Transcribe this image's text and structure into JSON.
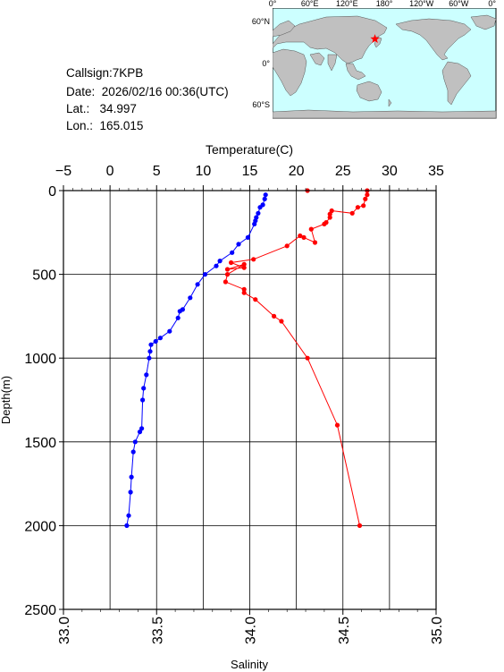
{
  "header": {
    "callsign_label": "Callsign:",
    "callsign": "7KPB",
    "date_label": "Date:",
    "date": "2026/02/16 00:36(UTC)",
    "lat_label": "Lat.:",
    "lat": "34.997",
    "lon_label": "Lon.:",
    "lon": "165.015"
  },
  "map": {
    "top_ticks": [
      "0°",
      "60°E",
      "120°E",
      "180°",
      "120°W",
      "60°W",
      "0°"
    ],
    "left_ticks": [
      "60°N",
      "0°",
      "60°S"
    ],
    "lon_range": [
      0,
      360
    ],
    "lat_range": [
      -80,
      80
    ],
    "marker": {
      "lon": 165.015,
      "lat": 34.997,
      "symbol": "star-icon",
      "color": "#ff0000"
    },
    "ocean_color": "#ccffff",
    "land_color": "#c0c0c0"
  },
  "chart_data": {
    "type": "line",
    "top_axis": {
      "label": "Temperature(C)",
      "range": [
        -5,
        35
      ],
      "ticks": [
        -5,
        0,
        5,
        10,
        15,
        20,
        25,
        30,
        35
      ],
      "tick_labels": [
        "−5",
        "0",
        "5",
        "10",
        "15",
        "20",
        "25",
        "30",
        "35"
      ]
    },
    "bottom_axis": {
      "label": "Salinity",
      "range": [
        33.0,
        35.0
      ],
      "ticks": [
        33.0,
        33.5,
        34.0,
        34.5,
        35.0
      ],
      "tick_labels": [
        "33.0",
        "33.5",
        "34.0",
        "34.5",
        "35.0"
      ]
    },
    "y_axis": {
      "label": "Depth(m)",
      "range": [
        0,
        2500
      ],
      "inverted": true,
      "ticks": [
        0,
        500,
        1000,
        1500,
        2000,
        2500
      ],
      "tick_labels": [
        "0",
        "500",
        "1000",
        "1500",
        "2000",
        "2500"
      ]
    },
    "grid": true,
    "series": [
      {
        "quantity": "temperature",
        "axis": "top",
        "color": "#0000ff",
        "points": [
          [
            16.7,
            25
          ],
          [
            16.6,
            50
          ],
          [
            16.4,
            85
          ],
          [
            16.1,
            100
          ],
          [
            15.9,
            135
          ],
          [
            15.7,
            160
          ],
          [
            15.6,
            180
          ],
          [
            15.5,
            200
          ],
          [
            14.8,
            280
          ],
          [
            13.8,
            320
          ],
          [
            13.1,
            370
          ],
          [
            11.8,
            420
          ],
          [
            11.4,
            450
          ],
          [
            10.2,
            500
          ],
          [
            9.4,
            560
          ],
          [
            8.6,
            640
          ],
          [
            7.8,
            710
          ],
          [
            7.5,
            720
          ],
          [
            7.3,
            760
          ],
          [
            6.4,
            840
          ],
          [
            5.4,
            880
          ],
          [
            4.9,
            900
          ],
          [
            4.4,
            920
          ],
          [
            4.3,
            960
          ],
          [
            4.2,
            1000
          ],
          [
            3.9,
            1100
          ],
          [
            3.6,
            1180
          ],
          [
            3.5,
            1250
          ],
          [
            3.4,
            1420
          ],
          [
            3.2,
            1440
          ],
          [
            2.7,
            1500
          ],
          [
            2.5,
            1560
          ],
          [
            2.3,
            1710
          ],
          [
            2.2,
            1800
          ],
          [
            2.0,
            1940
          ],
          [
            1.8,
            2000
          ]
        ]
      },
      {
        "quantity": "salinity",
        "axis": "bottom",
        "color": "#ff0000",
        "points": [
          [
            34.31,
            0
          ],
          [
            34.63,
            0
          ],
          [
            34.63,
            25
          ],
          [
            34.62,
            50
          ],
          [
            34.61,
            90
          ],
          [
            34.58,
            100
          ],
          [
            34.55,
            135
          ],
          [
            34.44,
            120
          ],
          [
            34.43,
            140
          ],
          [
            34.43,
            160
          ],
          [
            34.41,
            190
          ],
          [
            34.4,
            200
          ],
          [
            34.33,
            230
          ],
          [
            34.35,
            310
          ],
          [
            34.29,
            280
          ],
          [
            34.27,
            270
          ],
          [
            34.2,
            330
          ],
          [
            34.02,
            410
          ],
          [
            33.9,
            430
          ],
          [
            33.97,
            460
          ],
          [
            33.88,
            470
          ],
          [
            33.97,
            440
          ],
          [
            33.88,
            500
          ],
          [
            33.87,
            545
          ],
          [
            33.97,
            590
          ],
          [
            33.97,
            610
          ],
          [
            34.03,
            650
          ],
          [
            34.13,
            750
          ],
          [
            34.17,
            780
          ],
          [
            34.31,
            1000
          ],
          [
            34.47,
            1400
          ],
          [
            34.59,
            2000
          ]
        ]
      }
    ]
  }
}
